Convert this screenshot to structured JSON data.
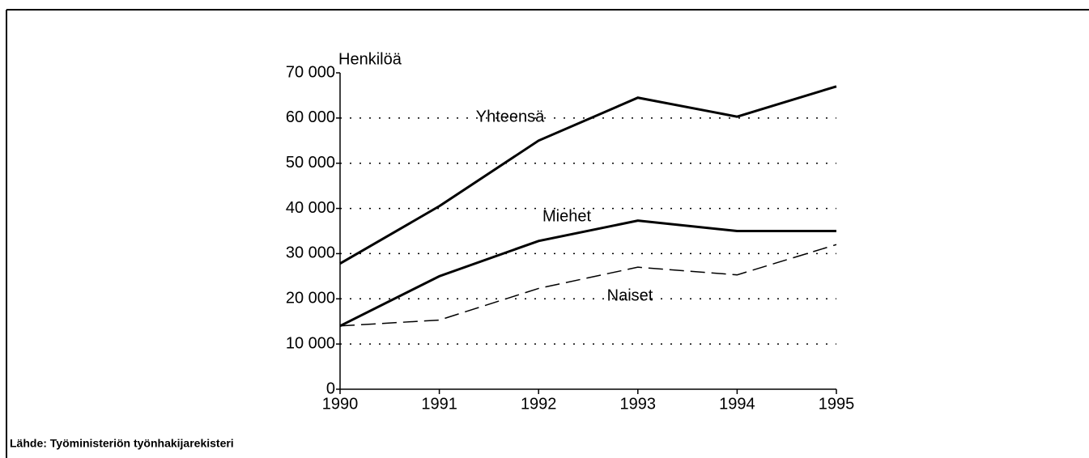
{
  "chart_data": {
    "type": "line",
    "ylabel": "Henkilöä",
    "source": "Lähde: Työministeriön työnhakijarekisteri",
    "x": [
      1990,
      1991,
      1992,
      1993,
      1994,
      1995
    ],
    "xlim": [
      1990,
      1995
    ],
    "xticks": [
      1990,
      1991,
      1992,
      1993,
      1994,
      1995
    ],
    "ylim": [
      0,
      70000
    ],
    "yticks": [
      0,
      {
        "value": 10000,
        "label": "10 000"
      },
      {
        "value": 20000,
        "label": "20 000"
      },
      {
        "value": 30000,
        "label": "30 000"
      },
      {
        "value": 40000,
        "label": "40 000"
      },
      {
        "value": 50000,
        "label": "50 000"
      },
      {
        "value": 60000,
        "label": "60 000"
      },
      {
        "value": 70000,
        "label": "70 000"
      }
    ],
    "grid": true,
    "series": [
      {
        "name": "Yhteensä",
        "color": "#000000",
        "linestyle": "solid",
        "values": [
          27800,
          40500,
          55000,
          64500,
          60300,
          67000
        ]
      },
      {
        "name": "Miehet",
        "color": "#000000",
        "linestyle": "solid",
        "values": [
          14000,
          25000,
          32800,
          37300,
          35000,
          35000
        ]
      },
      {
        "name": "Naiset",
        "color": "#000000",
        "linestyle": "dashed",
        "values": [
          14000,
          15300,
          22300,
          27000,
          25300,
          32000
        ]
      }
    ]
  }
}
